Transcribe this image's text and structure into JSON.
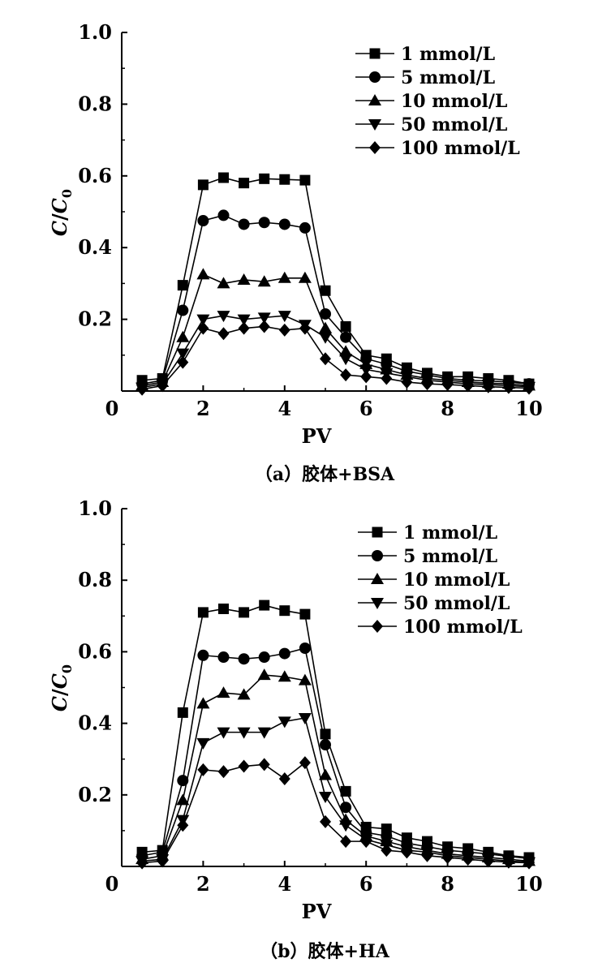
{
  "chart_data": [
    {
      "type": "line",
      "caption": "（a）胶体+BSA",
      "xlabel": "PV",
      "ylabel": "C/C0",
      "xlim": [
        0,
        10
      ],
      "ylim": [
        0,
        1.0
      ],
      "xticks": [
        "0",
        "2",
        "4",
        "6",
        "8",
        "10"
      ],
      "yticks": [
        "0.2",
        "0.4",
        "0.6",
        "0.8",
        "1.0"
      ],
      "legend_position": "top-right",
      "x": [
        0.5,
        1.0,
        1.5,
        2.0,
        2.5,
        3.0,
        3.5,
        4.0,
        4.5,
        5.0,
        5.5,
        6.0,
        6.5,
        7.0,
        7.5,
        8.0,
        8.5,
        9.0,
        9.5,
        10.0
      ],
      "series": [
        {
          "name": "1 mmol/L",
          "marker": "square",
          "values": [
            0.03,
            0.035,
            0.295,
            0.575,
            0.595,
            0.58,
            0.592,
            0.59,
            0.588,
            0.28,
            0.18,
            0.1,
            0.09,
            0.065,
            0.05,
            0.04,
            0.04,
            0.035,
            0.03,
            0.02
          ]
        },
        {
          "name": "5 mmol/L",
          "marker": "circle",
          "values": [
            0.02,
            0.03,
            0.225,
            0.475,
            0.49,
            0.465,
            0.47,
            0.465,
            0.455,
            0.215,
            0.15,
            0.09,
            0.075,
            0.055,
            0.045,
            0.035,
            0.03,
            0.028,
            0.025,
            0.02
          ]
        },
        {
          "name": "10 mmol/L",
          "marker": "triangle-up",
          "values": [
            0.015,
            0.025,
            0.15,
            0.325,
            0.3,
            0.31,
            0.305,
            0.315,
            0.315,
            0.175,
            0.11,
            0.075,
            0.06,
            0.045,
            0.035,
            0.03,
            0.025,
            0.022,
            0.02,
            0.015
          ]
        },
        {
          "name": "50 mmol/L",
          "marker": "triangle-down",
          "values": [
            0.01,
            0.02,
            0.105,
            0.2,
            0.21,
            0.2,
            0.205,
            0.21,
            0.185,
            0.15,
            0.09,
            0.06,
            0.05,
            0.04,
            0.03,
            0.025,
            0.02,
            0.018,
            0.015,
            0.012
          ]
        },
        {
          "name": "100 mmol/L",
          "marker": "diamond",
          "values": [
            0.005,
            0.015,
            0.08,
            0.175,
            0.16,
            0.175,
            0.18,
            0.17,
            0.175,
            0.09,
            0.045,
            0.04,
            0.035,
            0.025,
            0.02,
            0.018,
            0.015,
            0.012,
            0.01,
            0.008
          ]
        }
      ]
    },
    {
      "type": "line",
      "caption": "（b）胶体+HA",
      "xlabel": "PV",
      "ylabel": "C/C0",
      "xlim": [
        0,
        10
      ],
      "ylim": [
        0,
        1.0
      ],
      "xticks": [
        "0",
        "2",
        "4",
        "6",
        "8",
        "10"
      ],
      "yticks": [
        "0.2",
        "0.4",
        "0.6",
        "0.8",
        "1.0"
      ],
      "legend_position": "top-right",
      "x": [
        0.5,
        1.0,
        1.5,
        2.0,
        2.5,
        3.0,
        3.5,
        4.0,
        4.5,
        5.0,
        5.5,
        6.0,
        6.5,
        7.0,
        7.5,
        8.0,
        8.5,
        9.0,
        9.5,
        10.0
      ],
      "series": [
        {
          "name": "1 mmol/L",
          "marker": "square",
          "values": [
            0.04,
            0.045,
            0.43,
            0.71,
            0.72,
            0.71,
            0.73,
            0.715,
            0.705,
            0.37,
            0.21,
            0.11,
            0.105,
            0.08,
            0.07,
            0.055,
            0.05,
            0.04,
            0.03,
            0.025
          ]
        },
        {
          "name": "5 mmol/L",
          "marker": "circle",
          "values": [
            0.03,
            0.04,
            0.24,
            0.59,
            0.585,
            0.58,
            0.585,
            0.595,
            0.61,
            0.34,
            0.165,
            0.095,
            0.085,
            0.065,
            0.055,
            0.045,
            0.04,
            0.035,
            0.028,
            0.022
          ]
        },
        {
          "name": "10 mmol/L",
          "marker": "triangle-up",
          "values": [
            0.02,
            0.03,
            0.185,
            0.455,
            0.485,
            0.48,
            0.535,
            0.53,
            0.52,
            0.255,
            0.13,
            0.085,
            0.07,
            0.055,
            0.045,
            0.035,
            0.03,
            0.025,
            0.02,
            0.015
          ]
        },
        {
          "name": "50 mmol/L",
          "marker": "triangle-down",
          "values": [
            0.015,
            0.02,
            0.13,
            0.345,
            0.375,
            0.375,
            0.375,
            0.405,
            0.415,
            0.195,
            0.115,
            0.075,
            0.06,
            0.045,
            0.04,
            0.03,
            0.025,
            0.02,
            0.015,
            0.012
          ]
        },
        {
          "name": "100 mmol/L",
          "marker": "diamond",
          "values": [
            0.01,
            0.015,
            0.115,
            0.27,
            0.265,
            0.28,
            0.285,
            0.245,
            0.29,
            0.125,
            0.07,
            0.07,
            0.045,
            0.04,
            0.03,
            0.025,
            0.02,
            0.015,
            0.012,
            0.01
          ]
        }
      ]
    }
  ]
}
